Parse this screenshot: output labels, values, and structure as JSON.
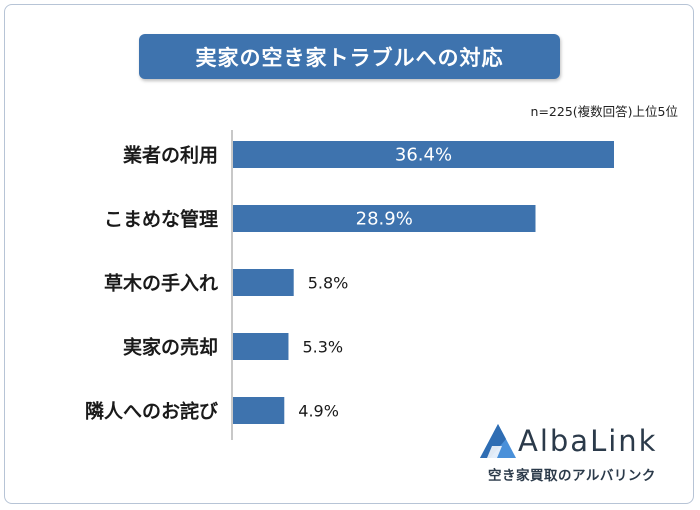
{
  "header": {
    "title": "実家の空き家トラブルへの対応",
    "note": "n=225(複数回答)上位5位"
  },
  "chart_data": {
    "type": "bar",
    "orientation": "horizontal",
    "title": "実家の空き家トラブルへの対応",
    "categories": [
      "業者の利用",
      "こまめな管理",
      "草木の手入れ",
      "実家の売却",
      "隣人へのお詫び"
    ],
    "values": [
      36.4,
      28.9,
      5.8,
      5.3,
      4.9
    ],
    "value_labels": [
      "36.4%",
      "28.9%",
      "5.8%",
      "5.3%",
      "4.9%"
    ],
    "unit": "%",
    "xlim": [
      0,
      40
    ],
    "grid": false,
    "bar_color": "#3e73ae"
  },
  "brand": {
    "name": "AlbaLink",
    "tagline": "空き家買取のアルバリンク"
  }
}
